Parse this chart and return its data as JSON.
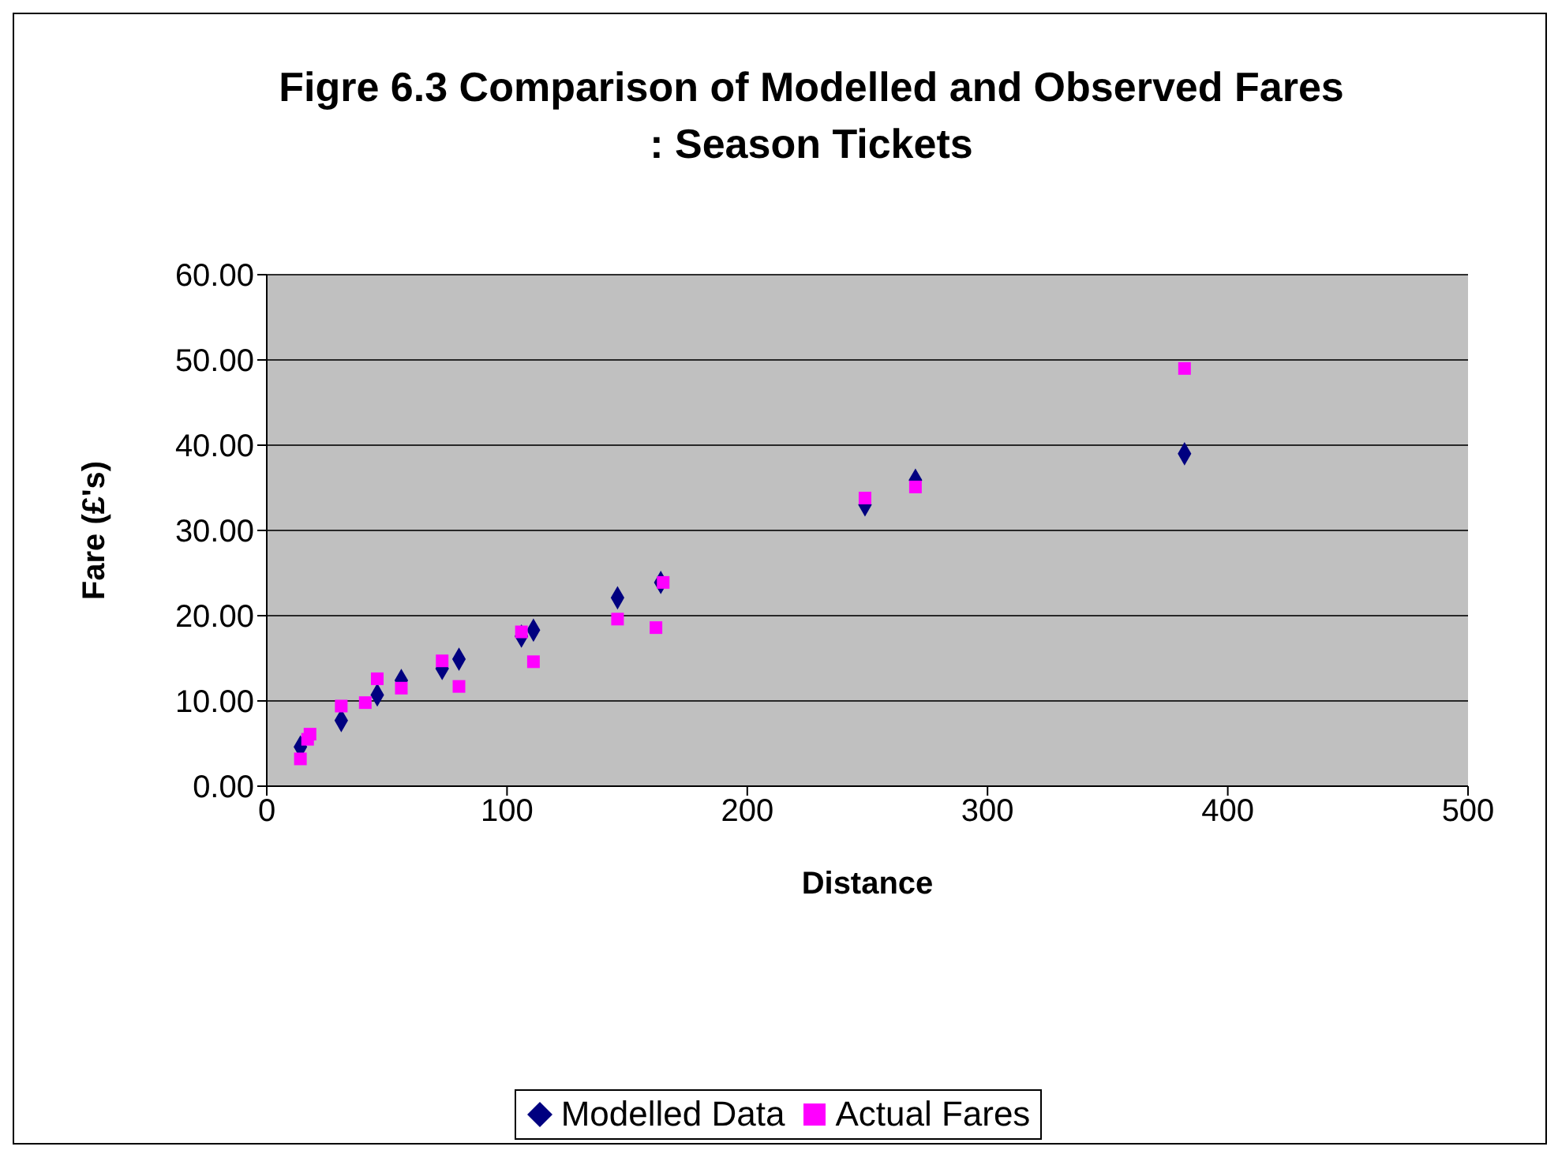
{
  "chart_data": {
    "type": "scatter",
    "title": "Figre 6.3 Comparison of Modelled and Observed Fares : Season Tickets",
    "xlabel": "Distance",
    "ylabel": "Fare (£'s)",
    "xlim": [
      0,
      500
    ],
    "xticks": [
      0,
      100,
      200,
      300,
      400,
      500
    ],
    "ylim": [
      0,
      60
    ],
    "yticks": [
      {
        "value": 0,
        "label": "0.00"
      },
      {
        "value": 10,
        "label": "10.00"
      },
      {
        "value": 20,
        "label": "20.00"
      },
      {
        "value": 30,
        "label": "30.00"
      },
      {
        "value": 40,
        "label": "40.00"
      },
      {
        "value": 50,
        "label": "50.00"
      },
      {
        "value": 60,
        "label": "60.00"
      }
    ],
    "grid": "y",
    "legend": "bottom",
    "series": [
      {
        "name": "Modelled Data",
        "color": "#000080",
        "marker": "diamond",
        "x": [
          14,
          31,
          46,
          56,
          73,
          80,
          106,
          111,
          146,
          164,
          249,
          270,
          382
        ],
        "values": [
          4.6,
          7.7,
          10.7,
          12.4,
          13.8,
          14.9,
          17.6,
          18.3,
          22.1,
          23.9,
          33.0,
          35.9,
          39.0
        ]
      },
      {
        "name": "Actual Fares",
        "color": "#ff00ff",
        "marker": "square",
        "x": [
          14,
          17,
          18,
          31,
          41,
          46,
          56,
          73,
          80,
          106,
          111,
          146,
          162,
          165,
          249,
          270,
          382
        ],
        "values": [
          3.2,
          5.5,
          6.1,
          9.4,
          9.8,
          12.6,
          11.5,
          14.7,
          11.7,
          18.1,
          14.6,
          19.6,
          18.6,
          23.9,
          33.8,
          35.1,
          49.0
        ]
      }
    ]
  }
}
